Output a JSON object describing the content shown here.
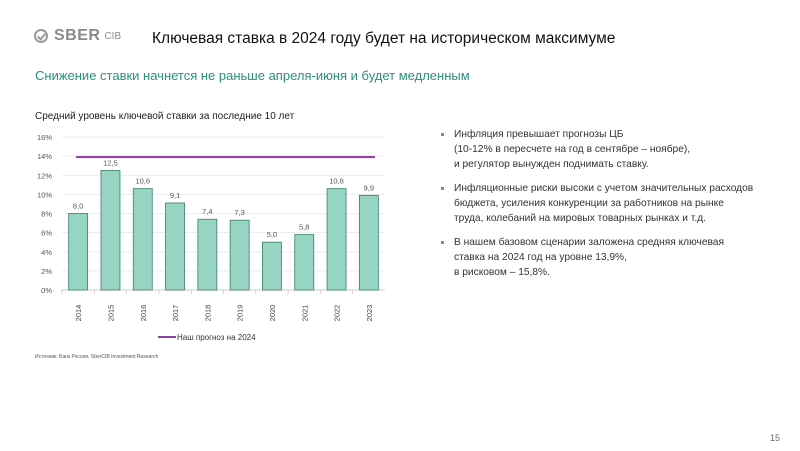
{
  "header": {
    "logo_text": "SBER",
    "logo_suffix": "CIB",
    "title": "Ключевая ставка в 2024 году будет на историческом максимуме"
  },
  "subtitle": "Снижение ставки начнется не раньше апреля-июня и будет медленным",
  "chart_data": {
    "type": "bar",
    "title": "Средний уровень ключевой ставки за последние 10 лет",
    "categories": [
      "2014",
      "2015",
      "2016",
      "2017",
      "2018",
      "2019",
      "2020",
      "2021",
      "2022",
      "2023"
    ],
    "values": [
      8.0,
      12.5,
      10.6,
      9.1,
      7.4,
      7.3,
      5.0,
      5.8,
      10.6,
      9.9
    ],
    "data_labels": [
      "8,0",
      "12,5",
      "10,6",
      "9,1",
      "7,4",
      "7,3",
      "5,0",
      "5,8",
      "10,6",
      "9,9"
    ],
    "ylim": [
      0,
      16
    ],
    "yticks": [
      "0%",
      "2%",
      "4%",
      "6%",
      "8%",
      "10%",
      "12%",
      "14%",
      "16%"
    ],
    "reference_line": {
      "name": "Наш прогноз на 2024",
      "value": 13.9,
      "color": "#8e44a0"
    },
    "bar_color": "#96d5c4",
    "bar_edge": "#3c7d6b",
    "grid": true,
    "legend": "bottom"
  },
  "source": "Источник: Банк России, SberCIB Investment Research",
  "bullets": [
    [
      "Инфляция превышает прогнозы ЦБ",
      "(10-12% в пересчете на год в сентябре – ноябре),",
      "и регулятор вынужден поднимать ставку."
    ],
    [
      "Инфляционные риски высоки с учетом значительных расходов",
      "бюджета, усиления конкуренции за работников на рынке",
      "труда, колебаний на мировых товарных рынках и т.д."
    ],
    [
      "В нашем базовом сценарии заложена средняя ключевая",
      "ставка на 2024 год на уровне 13,9%,",
      "в рисковом – 15,8%."
    ]
  ],
  "page_number": "15"
}
